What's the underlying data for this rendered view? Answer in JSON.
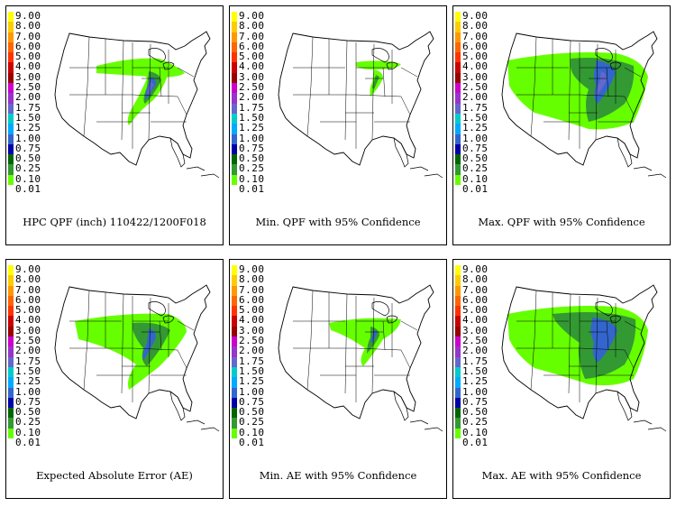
{
  "legend": {
    "labels": [
      "9.00",
      "8.00",
      "7.00",
      "6.00",
      "5.00",
      "4.00",
      "3.00",
      "2.50",
      "2.00",
      "1.75",
      "1.50",
      "1.25",
      "1.00",
      "0.75",
      "0.50",
      "0.25",
      "0.10",
      "0.01"
    ],
    "colors": [
      "#ffff00",
      "#ffcc00",
      "#ff9900",
      "#ff6600",
      "#ff3300",
      "#cc0000",
      "#990000",
      "#cc00cc",
      "#9933cc",
      "#6666cc",
      "#00cccc",
      "#00aaff",
      "#3366cc",
      "#0000aa",
      "#006600",
      "#339933",
      "#66ff00",
      "#ffffff"
    ]
  },
  "panels": [
    {
      "caption": "HPC QPF (inch) 110422/1200F018",
      "pattern": "a"
    },
    {
      "caption": "Min. QPF with 95% Confidence",
      "pattern": "b"
    },
    {
      "caption": "Max. QPF with 95% Confidence",
      "pattern": "c"
    },
    {
      "caption": "Expected Absolute Error (AE)",
      "pattern": "d"
    },
    {
      "caption": "Min. AE with 95% Confidence",
      "pattern": "e"
    },
    {
      "caption": "Max. AE with 95% Confidence",
      "pattern": "f"
    }
  ]
}
